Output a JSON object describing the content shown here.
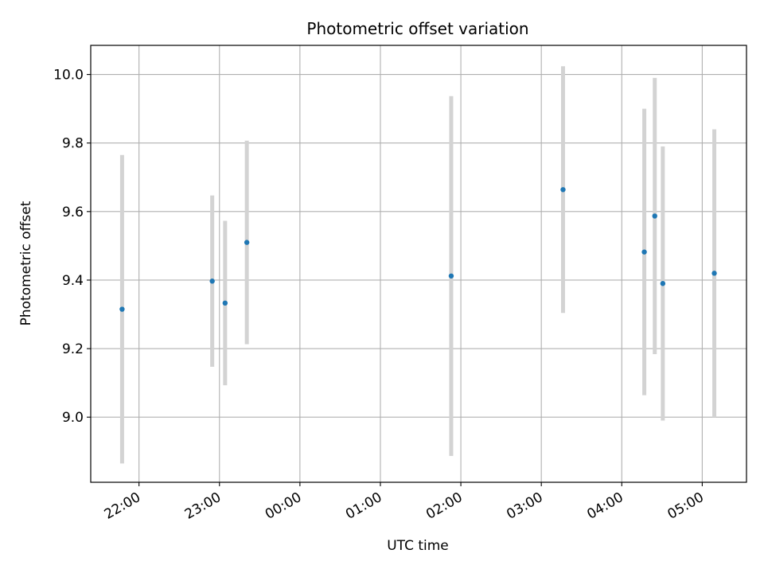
{
  "chart_data": {
    "type": "scatter",
    "title": "Photometric offset variation",
    "xlabel": "UTC time",
    "ylabel": "Photometric offset",
    "x_unit": "hours since 00:00 UTC",
    "xlim": [
      -2.6,
      5.55
    ],
    "ylim": [
      8.81,
      10.085
    ],
    "grid": true,
    "x_ticks": [
      {
        "value": -2,
        "label": "22:00"
      },
      {
        "value": -1,
        "label": "23:00"
      },
      {
        "value": 0,
        "label": "00:00"
      },
      {
        "value": 1,
        "label": "01:00"
      },
      {
        "value": 2,
        "label": "02:00"
      },
      {
        "value": 3,
        "label": "03:00"
      },
      {
        "value": 4,
        "label": "04:00"
      },
      {
        "value": 5,
        "label": "05:00"
      }
    ],
    "y_ticks": [
      {
        "value": 9.0,
        "label": "9.0"
      },
      {
        "value": 9.2,
        "label": "9.2"
      },
      {
        "value": 9.4,
        "label": "9.4"
      },
      {
        "value": 9.6,
        "label": "9.6"
      },
      {
        "value": 9.8,
        "label": "9.8"
      },
      {
        "value": 10.0,
        "label": "10.0"
      }
    ],
    "point_color": "#1f77b4",
    "errorbar_color": "#d3d3d3",
    "points": [
      {
        "x": -2.21,
        "y": 9.315,
        "yerr": 0.45
      },
      {
        "x": -1.09,
        "y": 9.397,
        "yerr": 0.25
      },
      {
        "x": -0.93,
        "y": 9.333,
        "yerr": 0.24
      },
      {
        "x": -0.66,
        "y": 9.51,
        "yerr": 0.297
      },
      {
        "x": 1.88,
        "y": 9.412,
        "yerr": 0.525
      },
      {
        "x": 3.27,
        "y": 9.664,
        "yerr": 0.36
      },
      {
        "x": 4.28,
        "y": 9.482,
        "yerr": 0.418
      },
      {
        "x": 4.41,
        "y": 9.587,
        "yerr": 0.403
      },
      {
        "x": 4.51,
        "y": 9.39,
        "yerr": 0.4
      },
      {
        "x": 5.15,
        "y": 9.42,
        "yerr": 0.42
      }
    ]
  }
}
